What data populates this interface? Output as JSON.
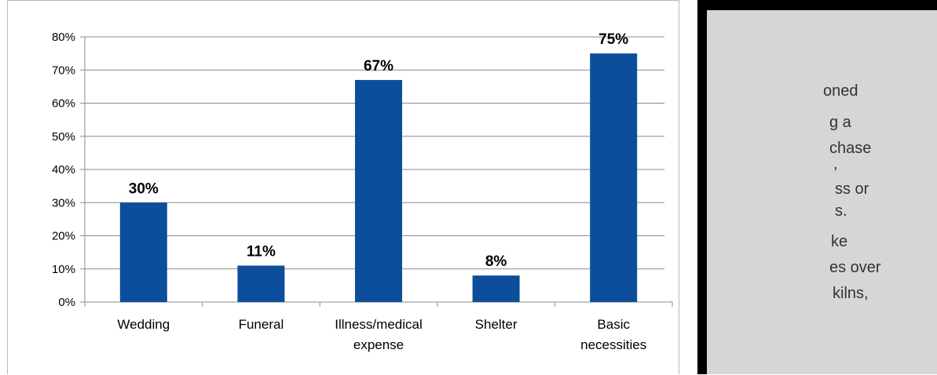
{
  "chart_data": {
    "type": "bar",
    "categories": [
      [
        "Wedding"
      ],
      [
        "Funeral"
      ],
      [
        "Illness/medical",
        "expense"
      ],
      [
        "Shelter"
      ],
      [
        "Basic",
        "necessities"
      ]
    ],
    "values": [
      30,
      11,
      67,
      8,
      75
    ],
    "data_labels": [
      "30%",
      "11%",
      "67%",
      "8%",
      "75%"
    ],
    "yticks": [
      "0%",
      "10%",
      "20%",
      "30%",
      "40%",
      "50%",
      "60%",
      "70%",
      "80%"
    ],
    "ylim": [
      0,
      80
    ],
    "grid": true,
    "colors": {
      "bar": "#0d4e9c",
      "grid": "#8c8c8c"
    }
  },
  "side_panel": {
    "lines": [
      "oned",
      "g a",
      "chase",
      ",",
      "ss or",
      "s.",
      "ke",
      "es over",
      "kilns,"
    ]
  }
}
